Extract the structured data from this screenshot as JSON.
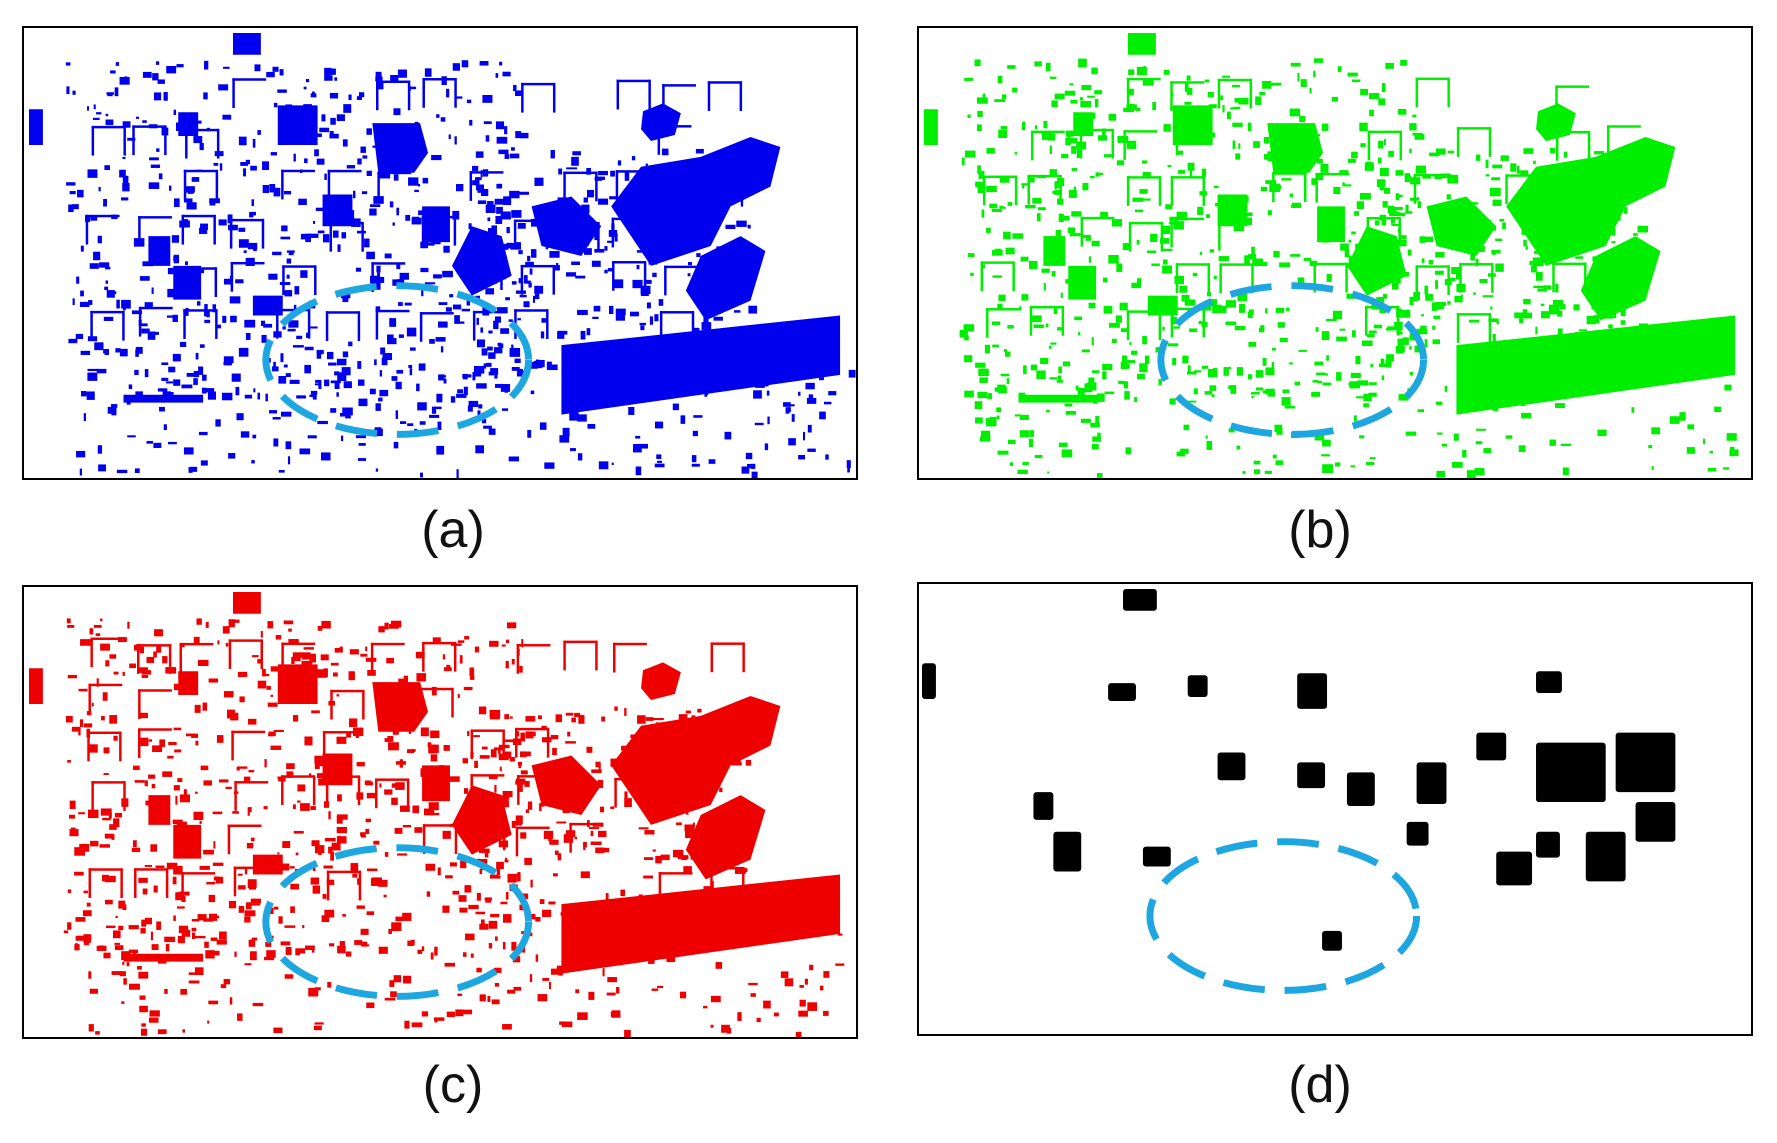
{
  "figure": {
    "panels": [
      {
        "id": "a",
        "label": "(a)",
        "color": "#0000ee",
        "style": "dense"
      },
      {
        "id": "b",
        "label": "(b)",
        "color": "#00ee00",
        "style": "dense"
      },
      {
        "id": "c",
        "label": "(c)",
        "color": "#ee0000",
        "style": "dense"
      },
      {
        "id": "d",
        "label": "(d)",
        "color": "#000000",
        "style": "sparse"
      }
    ],
    "highlight_color": "#1ea6e0"
  }
}
